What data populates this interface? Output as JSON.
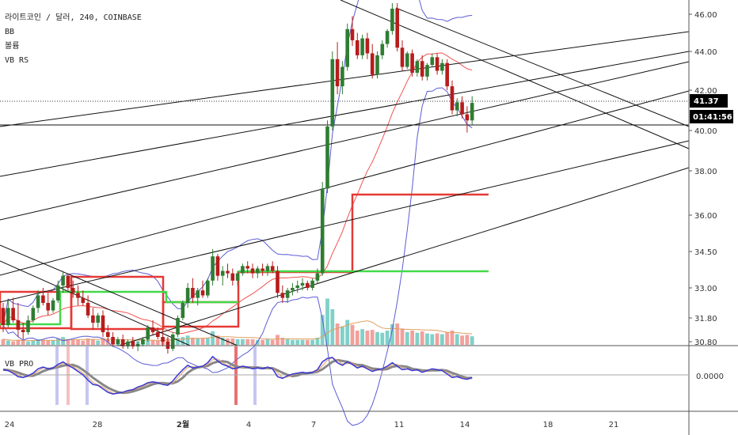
{
  "chart_data": {
    "type": "candlestick",
    "legend": {
      "title": "라이트코인 / 달러, 240, COINBASE",
      "indicators": [
        "BB",
        "볼륨",
        "VB RS"
      ],
      "sub_title": "VB PRO"
    },
    "price_axis": {
      "ticks": [
        "46.00",
        "44.00",
        "42.00",
        "40.00",
        "38.00",
        "36.00",
        "34.50",
        "33.00",
        "31.80",
        "30.80"
      ],
      "current_price": "41.37",
      "countdown": "01:41:56"
    },
    "sub_axis": {
      "ticks": [
        "0.0000"
      ]
    },
    "x_axis": {
      "ticks": [
        "24",
        "28",
        "2월",
        "4",
        "7",
        "11",
        "14",
        "18",
        "21"
      ],
      "bold_tick": "2월"
    },
    "colors": {
      "up": "#2e7d32",
      "down": "#b71c1c",
      "bb_band": "#5c5cd6",
      "bb_basis": "#ef5350",
      "box_red": "#e53935",
      "box_green": "#43d94a",
      "vol_up": "#7fd1c8",
      "vol_down": "#f2a09c",
      "osc_main": "#3c3cd4",
      "osc_slow": "#888888",
      "osc_fast": "#e0a060",
      "badge": "#000000"
    },
    "candles": [
      [
        32.2,
        32.4,
        31.2,
        31.5
      ],
      [
        31.5,
        32.5,
        31.4,
        32.2
      ],
      [
        32.2,
        32.6,
        31.6,
        31.7
      ],
      [
        31.7,
        32.4,
        31.0,
        31.3
      ],
      [
        31.3,
        31.6,
        30.9,
        31.2
      ],
      [
        31.2,
        31.9,
        31.1,
        31.7
      ],
      [
        31.7,
        32.3,
        31.6,
        32.2
      ],
      [
        32.2,
        32.9,
        32.0,
        32.7
      ],
      [
        32.7,
        33.0,
        32.3,
        32.4
      ],
      [
        32.4,
        32.8,
        31.9,
        32.1
      ],
      [
        32.1,
        32.6,
        32.0,
        32.5
      ],
      [
        32.5,
        33.3,
        32.4,
        33.1
      ],
      [
        33.1,
        33.7,
        32.8,
        33.5
      ],
      [
        33.5,
        33.6,
        32.9,
        33.0
      ],
      [
        33.0,
        33.3,
        32.6,
        32.8
      ],
      [
        32.8,
        33.1,
        32.3,
        32.6
      ],
      [
        32.6,
        32.9,
        32.3,
        32.4
      ],
      [
        32.4,
        32.7,
        31.8,
        31.9
      ],
      [
        31.9,
        32.2,
        31.3,
        31.6
      ],
      [
        31.6,
        32.0,
        31.4,
        31.9
      ],
      [
        31.9,
        32.1,
        31.0,
        31.2
      ],
      [
        31.2,
        31.5,
        30.8,
        31.0
      ],
      [
        31.0,
        31.2,
        30.6,
        30.7
      ],
      [
        30.7,
        31.0,
        30.6,
        30.9
      ],
      [
        30.9,
        31.1,
        30.5,
        30.6
      ],
      [
        30.6,
        30.9,
        30.5,
        30.8
      ],
      [
        30.8,
        31.0,
        30.5,
        30.6
      ],
      [
        30.6,
        30.8,
        30.4,
        30.7
      ],
      [
        30.7,
        31.0,
        30.6,
        30.9
      ],
      [
        30.9,
        31.5,
        30.8,
        31.4
      ],
      [
        31.4,
        31.7,
        31.1,
        31.2
      ],
      [
        31.2,
        31.4,
        30.9,
        31.0
      ],
      [
        31.0,
        31.3,
        30.6,
        30.8
      ],
      [
        30.8,
        31.0,
        30.3,
        30.5
      ],
      [
        30.5,
        31.2,
        30.4,
        31.1
      ],
      [
        31.1,
        31.9,
        31.0,
        31.8
      ],
      [
        31.8,
        32.5,
        31.7,
        32.4
      ],
      [
        32.4,
        33.2,
        32.2,
        33.0
      ],
      [
        33.0,
        33.4,
        32.4,
        32.6
      ],
      [
        32.6,
        33.0,
        32.3,
        32.9
      ],
      [
        32.9,
        33.3,
        32.6,
        32.7
      ],
      [
        32.7,
        33.4,
        32.6,
        33.3
      ],
      [
        33.3,
        34.6,
        33.1,
        34.3
      ],
      [
        34.3,
        34.4,
        33.3,
        33.5
      ],
      [
        33.5,
        33.9,
        33.1,
        33.7
      ],
      [
        33.7,
        34.0,
        33.4,
        33.6
      ],
      [
        33.6,
        33.8,
        33.1,
        33.3
      ],
      [
        33.3,
        33.7,
        33.1,
        33.6
      ],
      [
        33.6,
        34.0,
        33.5,
        33.9
      ],
      [
        33.9,
        34.1,
        33.6,
        33.8
      ],
      [
        33.8,
        34.0,
        33.4,
        33.6
      ],
      [
        33.6,
        33.9,
        33.4,
        33.8
      ],
      [
        33.8,
        34.0,
        33.5,
        33.7
      ],
      [
        33.7,
        34.0,
        33.5,
        33.9
      ],
      [
        33.9,
        34.1,
        33.6,
        33.7
      ],
      [
        33.7,
        33.9,
        32.6,
        32.8
      ],
      [
        32.8,
        33.1,
        32.4,
        32.6
      ],
      [
        32.6,
        33.0,
        32.4,
        32.9
      ],
      [
        32.9,
        33.2,
        32.7,
        33.0
      ],
      [
        33.0,
        33.3,
        32.8,
        33.1
      ],
      [
        33.1,
        33.4,
        32.9,
        33.2
      ],
      [
        33.2,
        33.3,
        32.9,
        33.0
      ],
      [
        33.0,
        33.4,
        32.9,
        33.3
      ],
      [
        33.3,
        33.8,
        33.2,
        33.6
      ],
      [
        33.6,
        37.5,
        33.5,
        37.2
      ],
      [
        37.2,
        40.5,
        37.0,
        40.2
      ],
      [
        40.2,
        44.0,
        40.0,
        43.6
      ],
      [
        43.6,
        44.5,
        41.8,
        42.2
      ],
      [
        42.2,
        43.5,
        41.8,
        43.2
      ],
      [
        43.2,
        45.5,
        43.0,
        45.2
      ],
      [
        45.2,
        45.9,
        44.3,
        44.6
      ],
      [
        44.6,
        45.0,
        43.6,
        43.8
      ],
      [
        43.8,
        44.9,
        43.6,
        44.7
      ],
      [
        44.7,
        45.0,
        43.6,
        43.9
      ],
      [
        43.9,
        44.4,
        42.6,
        42.8
      ],
      [
        42.8,
        44.0,
        42.6,
        43.8
      ],
      [
        43.8,
        44.6,
        43.6,
        44.4
      ],
      [
        44.4,
        45.2,
        44.2,
        45.1
      ],
      [
        45.1,
        46.6,
        44.9,
        46.3
      ],
      [
        46.3,
        46.6,
        44.0,
        44.2
      ],
      [
        44.2,
        44.6,
        43.0,
        43.2
      ],
      [
        43.2,
        44.0,
        43.1,
        43.9
      ],
      [
        43.9,
        44.1,
        42.7,
        42.9
      ],
      [
        42.9,
        43.6,
        42.7,
        43.5
      ],
      [
        43.5,
        43.8,
        42.5,
        42.7
      ],
      [
        42.7,
        43.4,
        42.5,
        43.3
      ],
      [
        43.3,
        43.9,
        43.2,
        43.7
      ],
      [
        43.7,
        43.9,
        42.8,
        43.0
      ],
      [
        43.0,
        43.6,
        42.8,
        43.4
      ],
      [
        43.4,
        43.6,
        42.0,
        42.2
      ],
      [
        42.2,
        42.5,
        40.8,
        41.0
      ],
      [
        41.0,
        41.6,
        40.7,
        41.4
      ],
      [
        41.4,
        41.7,
        40.6,
        40.8
      ],
      [
        40.8,
        41.2,
        39.9,
        40.5
      ],
      [
        40.5,
        41.7,
        40.3,
        41.37
      ]
    ],
    "volume": [
      0.8,
      0.6,
      0.5,
      0.7,
      0.6,
      0.5,
      0.6,
      0.8,
      0.7,
      0.6,
      0.6,
      0.9,
      1.1,
      0.8,
      0.7,
      0.7,
      0.6,
      0.9,
      0.8,
      0.6,
      0.9,
      0.8,
      0.7,
      0.6,
      0.6,
      0.5,
      0.6,
      0.5,
      0.6,
      0.8,
      0.7,
      0.6,
      0.8,
      0.9,
      0.8,
      1.0,
      1.1,
      1.3,
      1.0,
      0.9,
      0.9,
      1.0,
      1.9,
      1.3,
      1.0,
      0.9,
      0.9,
      0.8,
      0.8,
      0.8,
      0.8,
      0.7,
      0.7,
      0.8,
      0.7,
      1.4,
      1.0,
      0.8,
      0.7,
      0.7,
      0.7,
      0.7,
      0.7,
      1.0,
      4.2,
      6.5,
      5.0,
      3.0,
      2.6,
      3.5,
      2.8,
      2.0,
      2.2,
      2.0,
      2.1,
      1.8,
      1.7,
      2.0,
      2.9,
      3.0,
      2.3,
      1.8,
      2.0,
      1.7,
      1.9,
      1.6,
      1.5,
      1.6,
      1.5,
      1.8,
      2.0,
      1.5,
      1.3,
      1.4,
      1.2
    ],
    "osc": [
      0.3,
      0.25,
      0.1,
      -0.1,
      -0.15,
      -0.05,
      0.1,
      0.35,
      0.45,
      0.35,
      0.4,
      0.6,
      0.75,
      0.55,
      0.4,
      0.2,
      0.0,
      -0.3,
      -0.55,
      -0.6,
      -0.8,
      -1.0,
      -1.1,
      -1.05,
      -1.0,
      -0.9,
      -0.85,
      -0.7,
      -0.6,
      -0.45,
      -0.4,
      -0.45,
      -0.55,
      -0.6,
      -0.35,
      0.0,
      0.3,
      0.55,
      0.4,
      0.45,
      0.5,
      0.7,
      1.05,
      0.8,
      0.6,
      0.5,
      0.35,
      0.4,
      0.5,
      0.45,
      0.35,
      0.4,
      0.35,
      0.45,
      0.35,
      -0.1,
      -0.2,
      -0.05,
      0.05,
      0.1,
      0.15,
      0.1,
      0.15,
      0.3,
      0.75,
      0.95,
      1.0,
      0.7,
      0.55,
      0.75,
      0.6,
      0.4,
      0.5,
      0.35,
      0.2,
      0.3,
      0.35,
      0.5,
      0.7,
      0.5,
      0.3,
      0.35,
      0.25,
      0.3,
      0.15,
      0.25,
      0.35,
      0.3,
      0.25,
      0.05,
      -0.15,
      -0.1,
      -0.2,
      -0.25,
      -0.15
    ]
  }
}
